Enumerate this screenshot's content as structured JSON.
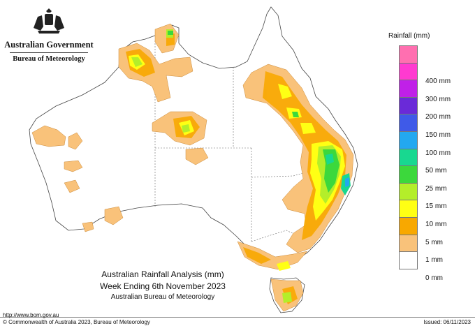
{
  "header": {
    "government": "Australian Government",
    "bureau": "Bureau of Meteorology"
  },
  "legend": {
    "title": "Rainfall (mm)",
    "items": [
      {
        "label": "",
        "color": "#ff6fb0"
      },
      {
        "label": "400 mm",
        "color": "#ff3ad0"
      },
      {
        "label": "300 mm",
        "color": "#c020e8"
      },
      {
        "label": "200 mm",
        "color": "#6a2ad8"
      },
      {
        "label": "150 mm",
        "color": "#3f5ae8"
      },
      {
        "label": "100 mm",
        "color": "#22a8f0"
      },
      {
        "label": "50 mm",
        "color": "#18d890"
      },
      {
        "label": "25 mm",
        "color": "#3cd83c"
      },
      {
        "label": "15 mm",
        "color": "#b4ee2a"
      },
      {
        "label": "10 mm",
        "color": "#ffff14"
      },
      {
        "label": "5 mm",
        "color": "#f8a800"
      },
      {
        "label": "1 mm",
        "color": "#f9c27a"
      },
      {
        "label": "0 mm",
        "color": "#ffffff"
      }
    ]
  },
  "title": {
    "line1": "Australian Rainfall Analysis (mm)",
    "line2": "Week Ending 6th November 2023",
    "line3": "Australian Bureau of Meteorology"
  },
  "footer": {
    "url": "http://www.bom.gov.au",
    "copyright": "© Commonwealth of Australia 2023, Bureau of Meteorology",
    "issued": "Issued: 06/11/2023"
  },
  "map": {
    "land_color": "#ffffff",
    "outline_color": "#444444",
    "border_color": "#666666",
    "rain_1mm": "#f9c27a",
    "rain_5mm": "#f8a800",
    "rain_10mm": "#ffff14",
    "rain_15mm": "#b4ee2a",
    "rain_25mm": "#3cd83c",
    "rain_50mm": "#18d890",
    "rain_100mm": "#22a8f0"
  }
}
